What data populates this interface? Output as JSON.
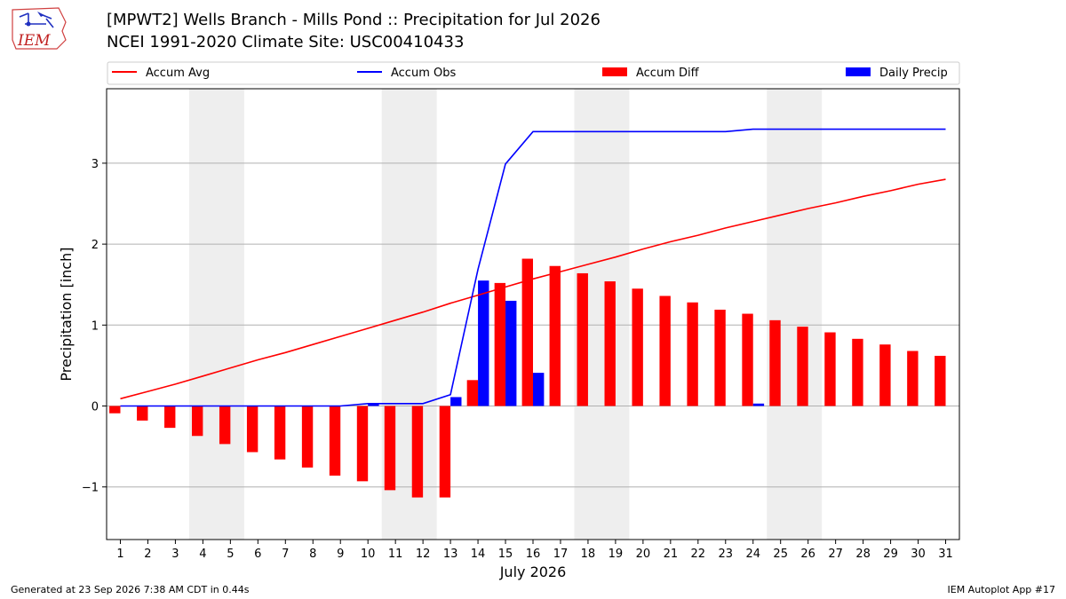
{
  "header": {
    "title": "[MPWT2] Wells Branch - Mills Pond :: Precipitation for Jul 2026",
    "subtitle": "NCEI 1991-2020 Climate Site: USC00410433"
  },
  "logo": {
    "text": "IEM",
    "icon": "iowa-state-outline-icon"
  },
  "footer": {
    "generated": "Generated at 23 Sep 2026 7:38 AM CDT in 0.44s",
    "app": "IEM Autoplot App #17"
  },
  "colors": {
    "accum_avg": "#ff0000",
    "accum_obs": "#0000ff",
    "accum_diff": "#ff0000",
    "daily_precip": "#0000ff",
    "weekend_shade": "#eeeeee",
    "grid": "#b0b0b0"
  },
  "chart_data": {
    "type": "bar",
    "xlabel": "July 2026",
    "ylabel": "Precipitation [inch]",
    "x": [
      1,
      2,
      3,
      4,
      5,
      6,
      7,
      8,
      9,
      10,
      11,
      12,
      13,
      14,
      15,
      16,
      17,
      18,
      19,
      20,
      21,
      22,
      23,
      24,
      25,
      26,
      27,
      28,
      29,
      30,
      31
    ],
    "xlim": [
      0.5,
      31.5
    ],
    "ylim": [
      -1.65,
      3.92
    ],
    "yticks": [
      -1,
      0,
      1,
      2,
      3
    ],
    "ytick_labels": [
      "−1",
      "0",
      "1",
      "2",
      "3"
    ],
    "grid": "horizontal",
    "legend_position": "top",
    "shaded_days": [
      [
        4,
        5
      ],
      [
        11,
        12
      ],
      [
        18,
        19
      ],
      [
        25,
        26
      ]
    ],
    "series": [
      {
        "name": "Accum Avg",
        "kind": "line",
        "color": "#ff0000",
        "values": [
          0.09,
          0.18,
          0.27,
          0.37,
          0.47,
          0.57,
          0.66,
          0.76,
          0.86,
          0.96,
          1.06,
          1.16,
          1.27,
          1.37,
          1.47,
          1.57,
          1.66,
          1.75,
          1.84,
          1.94,
          2.03,
          2.11,
          2.2,
          2.28,
          2.36,
          2.44,
          2.51,
          2.59,
          2.66,
          2.74,
          2.8
        ]
      },
      {
        "name": "Accum Obs",
        "kind": "line",
        "color": "#0000ff",
        "values": [
          0,
          0,
          0,
          0,
          0,
          0,
          0,
          0,
          0,
          0.03,
          0.03,
          0.03,
          0.14,
          1.69,
          2.99,
          3.39,
          3.39,
          3.39,
          3.39,
          3.39,
          3.39,
          3.39,
          3.39,
          3.42,
          3.42,
          3.42,
          3.42,
          3.42,
          3.42,
          3.42,
          3.42
        ]
      },
      {
        "name": "Accum Diff",
        "kind": "bar",
        "color": "#ff0000",
        "values": [
          -0.09,
          -0.18,
          -0.27,
          -0.37,
          -0.47,
          -0.57,
          -0.66,
          -0.76,
          -0.86,
          -0.93,
          -1.04,
          -1.13,
          -1.13,
          0.32,
          1.52,
          1.82,
          1.73,
          1.64,
          1.54,
          1.45,
          1.36,
          1.28,
          1.19,
          1.14,
          1.06,
          0.98,
          0.91,
          0.83,
          0.76,
          0.68,
          0.62
        ]
      },
      {
        "name": "Daily Precip",
        "kind": "bar",
        "color": "#0000ff",
        "values": [
          0,
          0,
          0,
          0,
          0,
          0,
          0,
          0,
          0,
          0.03,
          0,
          0,
          0.11,
          1.55,
          1.3,
          0.41,
          0,
          0,
          0,
          0,
          0,
          0,
          0,
          0.03,
          0,
          0,
          0,
          0,
          0,
          0,
          0
        ]
      }
    ]
  }
}
